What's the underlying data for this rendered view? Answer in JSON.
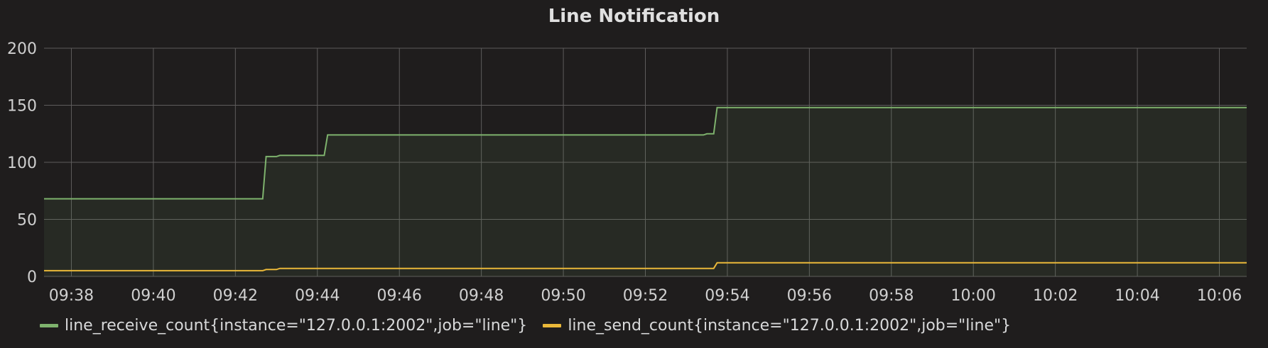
{
  "panel": {
    "title": "Line Notification"
  },
  "chart_data": {
    "type": "line",
    "title": "Line Notification",
    "xlabel": "",
    "ylabel": "",
    "ylim": [
      0,
      200
    ],
    "xlim": [
      "09:37:20",
      "10:06:40"
    ],
    "y_ticks": [
      "0",
      "50",
      "100",
      "150",
      "200"
    ],
    "x_ticks": [
      "09:38",
      "09:40",
      "09:42",
      "09:44",
      "09:46",
      "09:48",
      "09:50",
      "09:52",
      "09:54",
      "09:56",
      "09:58",
      "10:00",
      "10:02",
      "10:04",
      "10:06"
    ],
    "grid": true,
    "legend_position": "bottom-left",
    "series": [
      {
        "name": "line_receive_count{instance=\"127.0.0.1:2002\",job=\"line\"}",
        "color": "#7eb26d",
        "fill": true,
        "points": [
          [
            "09:37:20",
            68
          ],
          [
            "09:42:40",
            68
          ],
          [
            "09:42:45",
            105
          ],
          [
            "09:43:00",
            105
          ],
          [
            "09:43:05",
            106
          ],
          [
            "09:44:10",
            106
          ],
          [
            "09:44:15",
            124
          ],
          [
            "09:53:25",
            124
          ],
          [
            "09:53:30",
            125
          ],
          [
            "09:53:40",
            125
          ],
          [
            "09:53:45",
            148
          ],
          [
            "10:06:40",
            148
          ]
        ]
      },
      {
        "name": "line_send_count{instance=\"127.0.0.1:2002\",job=\"line\"}",
        "color": "#eab839",
        "fill": false,
        "points": [
          [
            "09:37:20",
            5
          ],
          [
            "09:42:40",
            5
          ],
          [
            "09:42:45",
            6
          ],
          [
            "09:43:00",
            6
          ],
          [
            "09:43:05",
            7
          ],
          [
            "09:53:40",
            7
          ],
          [
            "09:53:45",
            12
          ],
          [
            "10:06:40",
            12
          ]
        ]
      }
    ]
  }
}
